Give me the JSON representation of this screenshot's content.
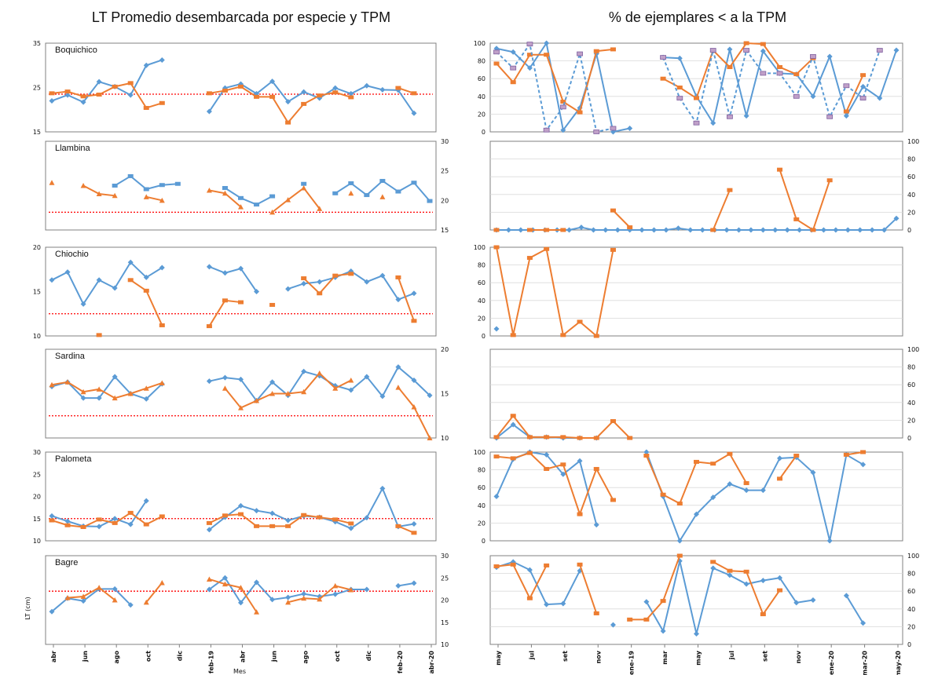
{
  "titles": {
    "left": "LT Promedio desembarcada por especie y TPM",
    "right": "% de ejemplares < a la TPM"
  },
  "colors": {
    "blue": "#5B9BD5",
    "orange": "#ED7D31",
    "tpm": "#FF0000",
    "frame": "#808080",
    "grid": "#D9D9D9"
  },
  "axes": {
    "left_xlabel": "Mes",
    "left_ylabel": "LT (cm)",
    "left_xticks": [
      "abr",
      "jun",
      "ago",
      "oct",
      "dic",
      "feb-19",
      "abr",
      "jun",
      "ago",
      "oct",
      "dic",
      "feb-20",
      "abr-20"
    ],
    "right_xticks": [
      "may",
      "jul",
      "set",
      "nov",
      "ene-19",
      "mar",
      "may",
      "jul",
      "set",
      "nov",
      "ene-20",
      "mar-20",
      "may-20"
    ]
  },
  "chart_data": [
    {
      "type": "line",
      "panel": "left",
      "row": 0,
      "label": "Boquichico",
      "ylim": [
        15,
        35
      ],
      "yticks_left": [
        15,
        25,
        35
      ],
      "yticks_right": [],
      "tpm": 23.5,
      "grid": false,
      "series": [
        {
          "color": "blue",
          "marker": "diamond",
          "values": [
            22,
            23.3,
            21.7,
            26.3,
            25.2,
            23.3,
            30,
            31.2,
            null,
            null,
            19.6,
            24.9,
            25.8,
            23.6,
            26.4,
            21.8,
            24,
            22.6,
            24.9,
            23.6,
            25.4,
            24.5,
            24.4,
            19.2
          ]
        },
        {
          "color": "orange",
          "marker": "square",
          "values": [
            23.7,
            24.1,
            23,
            23.4,
            25.2,
            26,
            20.4,
            21.5,
            null,
            null,
            23.7,
            24.3,
            25.2,
            22.9,
            22.9,
            17.1,
            21.3,
            23.2,
            23.9,
            22.8,
            null,
            null,
            24.9,
            23.7
          ]
        }
      ]
    },
    {
      "type": "line",
      "panel": "left",
      "row": 1,
      "label": "Llambina",
      "ylim": [
        15,
        30
      ],
      "yticks_left": [],
      "yticks_right": [
        15,
        20,
        25,
        30
      ],
      "tpm": 18,
      "grid": false,
      "series": [
        {
          "color": "blue",
          "marker": "square",
          "values": [
            null,
            null,
            null,
            null,
            22.5,
            24.1,
            21.9,
            22.6,
            22.8,
            null,
            null,
            22.1,
            20.4,
            19.3,
            20.7,
            null,
            22.8,
            null,
            21.2,
            22.9,
            20.9,
            23.3,
            21.5,
            23.0,
            19.9
          ]
        },
        {
          "color": "orange",
          "marker": "triangle",
          "values": [
            23,
            null,
            22.5,
            21.1,
            20.8,
            null,
            20.6,
            20,
            null,
            null,
            21.7,
            21.2,
            18.9,
            null,
            18,
            20.1,
            22.1,
            18.6,
            null,
            21.2,
            null,
            20.6,
            null
          ]
        }
      ]
    },
    {
      "type": "line",
      "panel": "left",
      "row": 2,
      "label": "Chiochio",
      "ylim": [
        10,
        20
      ],
      "yticks_left": [
        10,
        15,
        20
      ],
      "yticks_right": [],
      "tpm": 12.5,
      "grid": false,
      "series": [
        {
          "color": "blue",
          "marker": "diamond",
          "values": [
            16.3,
            17.2,
            13.6,
            16.3,
            15.4,
            18.3,
            16.6,
            17.7,
            null,
            null,
            17.8,
            17.1,
            17.6,
            15,
            null,
            15.3,
            15.9,
            16.1,
            16.6,
            17.3,
            16.1,
            16.8,
            14.1,
            14.8
          ]
        },
        {
          "color": "orange",
          "marker": "square",
          "values": [
            null,
            null,
            null,
            10.1,
            null,
            16.3,
            15.1,
            11.2,
            null,
            null,
            11.1,
            14,
            13.8,
            null,
            13.5,
            null,
            16.5,
            14.8,
            16.8,
            17,
            null,
            null,
            16.6,
            11.7
          ]
        }
      ]
    },
    {
      "type": "line",
      "panel": "left",
      "row": 3,
      "label": "Sardina",
      "ylim": [
        10,
        20
      ],
      "yticks_left": [],
      "yticks_right": [
        10,
        15,
        20
      ],
      "tpm": 12.5,
      "grid": false,
      "series": [
        {
          "color": "blue",
          "marker": "diamond",
          "values": [
            15.8,
            16.3,
            14.5,
            14.5,
            16.9,
            15,
            14.4,
            16.1,
            null,
            null,
            16.4,
            16.8,
            16.6,
            14.2,
            16.3,
            14.8,
            17.5,
            17,
            15.9,
            15.4,
            16.9,
            14.7,
            18,
            16.5,
            14.8
          ]
        },
        {
          "color": "orange",
          "marker": "triangle",
          "values": [
            16,
            16.3,
            15.2,
            15.5,
            14.5,
            15,
            15.6,
            16.2,
            null,
            null,
            null,
            15.6,
            13.4,
            14.2,
            15,
            15,
            15.2,
            17.3,
            15.6,
            16.5,
            null,
            null,
            15.7,
            13.5,
            10
          ]
        }
      ]
    },
    {
      "type": "line",
      "panel": "left",
      "row": 4,
      "label": "Palometa",
      "ylim": [
        10,
        30
      ],
      "yticks_left": [
        10,
        15,
        20,
        25,
        30
      ],
      "yticks_right": [],
      "tpm": 15,
      "grid": false,
      "series": [
        {
          "color": "blue",
          "marker": "diamond",
          "values": [
            15.6,
            14.4,
            13.3,
            13.2,
            15,
            13.7,
            19,
            null,
            null,
            null,
            12.5,
            15.3,
            17.9,
            16.8,
            16.2,
            14.6,
            15.6,
            15.3,
            14.3,
            12.8,
            15.2,
            21.8,
            13.2,
            13.8
          ]
        },
        {
          "color": "orange",
          "marker": "square",
          "values": [
            14.6,
            13.5,
            13.1,
            14.8,
            14,
            16.3,
            13.7,
            15.5,
            null,
            null,
            14,
            15.7,
            16,
            13.3,
            13.3,
            13.3,
            15.8,
            15.3,
            14.8,
            13.9,
            null,
            null,
            13.3,
            11.8
          ]
        }
      ]
    },
    {
      "type": "line",
      "panel": "left",
      "row": 5,
      "label": "Bagre",
      "ylim": [
        10,
        30
      ],
      "yticks_left": [],
      "yticks_right": [
        10,
        15,
        20,
        25,
        30
      ],
      "tpm": 22,
      "grid": false,
      "series": [
        {
          "color": "blue",
          "marker": "diamond",
          "values": [
            17.4,
            20.4,
            19.8,
            22.5,
            22.5,
            18.9,
            null,
            null,
            null,
            null,
            22.4,
            25,
            19.4,
            24,
            20.1,
            20.6,
            21.4,
            20.8,
            21.3,
            22.4,
            22.4,
            null,
            23.2,
            23.8
          ]
        },
        {
          "color": "orange",
          "marker": "triangle",
          "values": [
            null,
            20.5,
            20.8,
            22.8,
            20,
            null,
            19.5,
            23.9,
            null,
            null,
            24.7,
            23.6,
            22.8,
            17.3,
            null,
            19.5,
            20.4,
            20.2,
            23.2,
            22.3,
            null,
            null,
            null,
            null
          ]
        }
      ]
    },
    {
      "type": "line",
      "panel": "right",
      "row": 0,
      "label": "",
      "ylim": [
        0,
        100
      ],
      "yticks_left": [
        0,
        20,
        40,
        60,
        80,
        100
      ],
      "yticks_right": [],
      "grid": true,
      "series": [
        {
          "color": "blue",
          "marker": "diamond",
          "values": [
            94,
            90,
            72,
            100,
            2,
            27,
            88,
            0,
            4,
            null,
            84,
            83,
            40,
            10,
            93,
            18,
            91,
            66,
            65,
            40,
            85,
            18,
            51,
            38,
            92
          ]
        },
        {
          "color": "orange",
          "marker": "square",
          "values": [
            77,
            56,
            87,
            87,
            34,
            22,
            91,
            93,
            null,
            null,
            60,
            50,
            38,
            92,
            73,
            100,
            99,
            73,
            65,
            83,
            null,
            23,
            64
          ]
        },
        {
          "color": "blue",
          "marker": "square",
          "dashed": true,
          "values": [
            90,
            72,
            99,
            2,
            28,
            88,
            0,
            4,
            null,
            null,
            84,
            38,
            10,
            92,
            17,
            92,
            66,
            66,
            40,
            85,
            17,
            52,
            38,
            92
          ]
        }
      ]
    },
    {
      "type": "line",
      "panel": "right",
      "row": 1,
      "label": "",
      "ylim": [
        0,
        100
      ],
      "yticks_left": [],
      "yticks_right": [
        0,
        20,
        40,
        60,
        80,
        100
      ],
      "grid": true,
      "series": [
        {
          "color": "blue",
          "marker": "diamond",
          "values": [
            0,
            0,
            0,
            0,
            0,
            0,
            0,
            3,
            0,
            0,
            0,
            0,
            0,
            0,
            0,
            2,
            0,
            0,
            0,
            0,
            0,
            0,
            0,
            0,
            0,
            0,
            0,
            0,
            0,
            0,
            0,
            0,
            0,
            13
          ]
        },
        {
          "color": "orange",
          "marker": "square",
          "values": [
            0,
            null,
            0,
            0,
            0,
            null,
            null,
            22,
            3,
            null,
            null,
            null,
            null,
            0,
            45,
            null,
            null,
            68,
            12,
            0,
            56
          ]
        }
      ]
    },
    {
      "type": "line",
      "panel": "right",
      "row": 2,
      "label": "",
      "ylim": [
        0,
        100
      ],
      "yticks_left": [
        0,
        20,
        40,
        60,
        80,
        100
      ],
      "yticks_right": [],
      "grid": true,
      "series": [
        {
          "color": "blue",
          "marker": "diamond",
          "values": [
            8
          ]
        },
        {
          "color": "orange",
          "marker": "square",
          "values": [
            100,
            1,
            88,
            98,
            1,
            16,
            0,
            97
          ]
        }
      ]
    },
    {
      "type": "line",
      "panel": "right",
      "row": 3,
      "label": "",
      "ylim": [
        0,
        100
      ],
      "yticks_left": [],
      "yticks_right": [
        0,
        20,
        40,
        60,
        80,
        100
      ],
      "grid": true,
      "series": [
        {
          "color": "blue",
          "marker": "diamond",
          "values": [
            0,
            15,
            1,
            1,
            0,
            0,
            0
          ]
        },
        {
          "color": "orange",
          "marker": "square",
          "values": [
            1,
            25,
            1,
            1,
            1,
            0,
            0,
            19,
            0
          ]
        }
      ]
    },
    {
      "type": "line",
      "panel": "right",
      "row": 4,
      "label": "",
      "ylim": [
        0,
        100
      ],
      "yticks_left": [
        0,
        20,
        40,
        60,
        80,
        100
      ],
      "yticks_right": [],
      "grid": true,
      "series": [
        {
          "color": "blue",
          "marker": "diamond",
          "values": [
            50,
            92,
            100,
            97,
            75,
            90,
            18,
            null,
            null,
            100,
            50,
            0,
            30,
            49,
            64,
            57,
            57,
            93,
            94,
            77,
            0,
            97,
            86
          ]
        },
        {
          "color": "orange",
          "marker": "square",
          "values": [
            95,
            93,
            99,
            81,
            86,
            30,
            81,
            46,
            null,
            96,
            52,
            42,
            89,
            87,
            98,
            65,
            null,
            70,
            96,
            null,
            null,
            97,
            100
          ]
        }
      ]
    },
    {
      "type": "line",
      "panel": "right",
      "row": 5,
      "label": "",
      "ylim": [
        0,
        100
      ],
      "yticks_left": [],
      "yticks_right": [
        0,
        20,
        40,
        60,
        80,
        100
      ],
      "grid": true,
      "series": [
        {
          "color": "blue",
          "marker": "diamond",
          "values": [
            87,
            93,
            84,
            45,
            46,
            83,
            null,
            22,
            null,
            48,
            15,
            94,
            12,
            86,
            78,
            68,
            72,
            75,
            47,
            50,
            null,
            55,
            24
          ]
        },
        {
          "color": "orange",
          "marker": "square",
          "values": [
            88,
            90,
            52,
            89,
            null,
            90,
            35,
            null,
            28,
            28,
            49,
            100,
            null,
            93,
            83,
            82,
            34,
            61
          ]
        }
      ]
    }
  ]
}
